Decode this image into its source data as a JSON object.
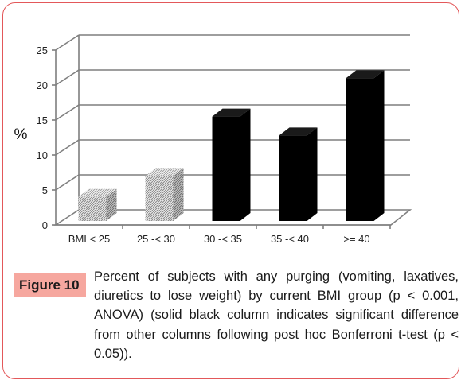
{
  "chart_data": {
    "type": "bar",
    "categories": [
      "BMI < 25",
      "25 -< 30",
      "30 -< 35",
      "35 -< 40",
      ">= 40"
    ],
    "values": [
      4,
      7,
      15.5,
      12.8,
      21
    ],
    "fills": [
      "hatched",
      "hatched",
      "solid",
      "solid",
      "solid"
    ],
    "ylabel": "%",
    "yticks": [
      0,
      5,
      10,
      15,
      20,
      25
    ],
    "ylim": [
      0,
      25
    ],
    "grid": true,
    "style": "3d-column"
  },
  "caption": {
    "label": "Figure 10",
    "text": "Percent of subjects with any purging (vomiting, laxatives, diuretics to lose weight) by current BMI group (p < 0.001, ANOVA) (solid black column indicates significant difference from other columns following post hoc Bonferroni t-test (p < 0.05))."
  },
  "colors": {
    "border": "#e3585a",
    "label_bg": "#f6a79f",
    "solid_bar": "#000000",
    "hatch_bar": "#b0b0b0",
    "grid": "#7f7f7f"
  }
}
